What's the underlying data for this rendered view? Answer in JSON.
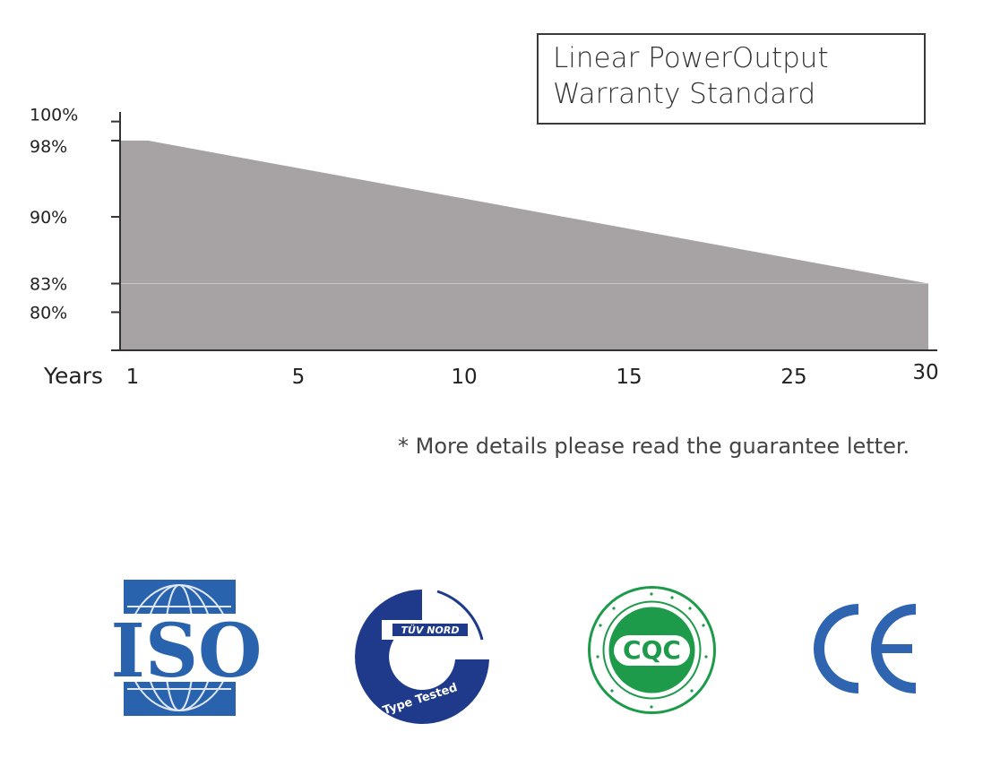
{
  "chart_data": {
    "type": "area",
    "title_lines": [
      "Linear PowerOutput",
      "Warranty Standard"
    ],
    "xlabel": "Years",
    "x_ticks": [
      "1",
      "5",
      "10",
      "15",
      "25",
      "30"
    ],
    "y_ticks": [
      "100%",
      "98%",
      "90%",
      "83%",
      "80%"
    ],
    "y_tick_values": [
      100,
      98,
      90,
      83,
      80
    ],
    "ylim": [
      76,
      101
    ],
    "series": [
      {
        "x": [
          1,
          2,
          30
        ],
        "y": [
          98,
          98,
          83
        ]
      }
    ],
    "colors": {
      "fill": "#a7a3a4",
      "axis": "#333333",
      "reference_line": "#c9c6c7"
    },
    "grid": false,
    "legend": "none"
  },
  "footnote": "* More details please read the guarantee letter.",
  "logos": [
    {
      "name": "iso-logo",
      "text": "ISO",
      "color": "#2a63ad"
    },
    {
      "name": "tuv-nord-logo",
      "text": "TÜV NORD",
      "subtext": "Type Tested",
      "color": "#1f3a8a"
    },
    {
      "name": "cqc-logo",
      "text": "CQC",
      "color": "#1d9a4a"
    },
    {
      "name": "ce-logo",
      "text": "CE",
      "color": "#2e64b0"
    }
  ]
}
